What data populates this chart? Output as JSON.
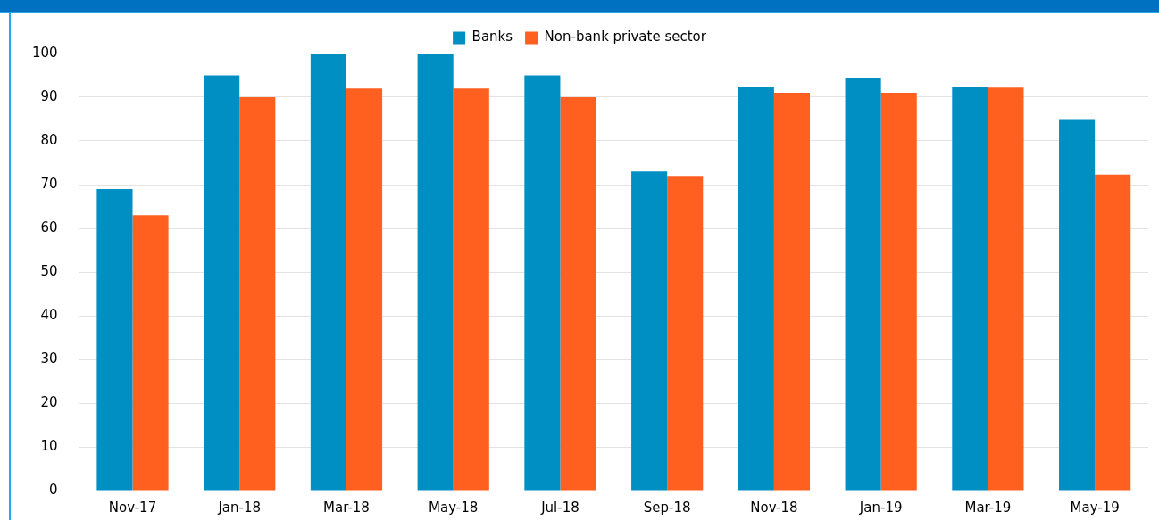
{
  "chart_data": {
    "type": "bar",
    "categories": [
      "Nov-17",
      "Jan-18",
      "Mar-18",
      "May-18",
      "Jul-18",
      "Sep-18",
      "Nov-18",
      "Jan-19",
      "Mar-19",
      "May-19"
    ],
    "series": [
      {
        "name": "Banks",
        "color": "#008fc3",
        "values": [
          69,
          95,
          100,
          100,
          95,
          73,
          92.4,
          94.3,
          92.4,
          85
        ]
      },
      {
        "name": "Non-bank private sector",
        "color": "#ff5f1f",
        "values": [
          63,
          90,
          92,
          92,
          90,
          72,
          91,
          91,
          92.2,
          72.3
        ]
      }
    ],
    "ylim": [
      0,
      100
    ],
    "yticks": [
      0,
      10,
      20,
      30,
      40,
      50,
      60,
      70,
      80,
      90,
      100
    ],
    "grid": "y",
    "legend": "top"
  }
}
